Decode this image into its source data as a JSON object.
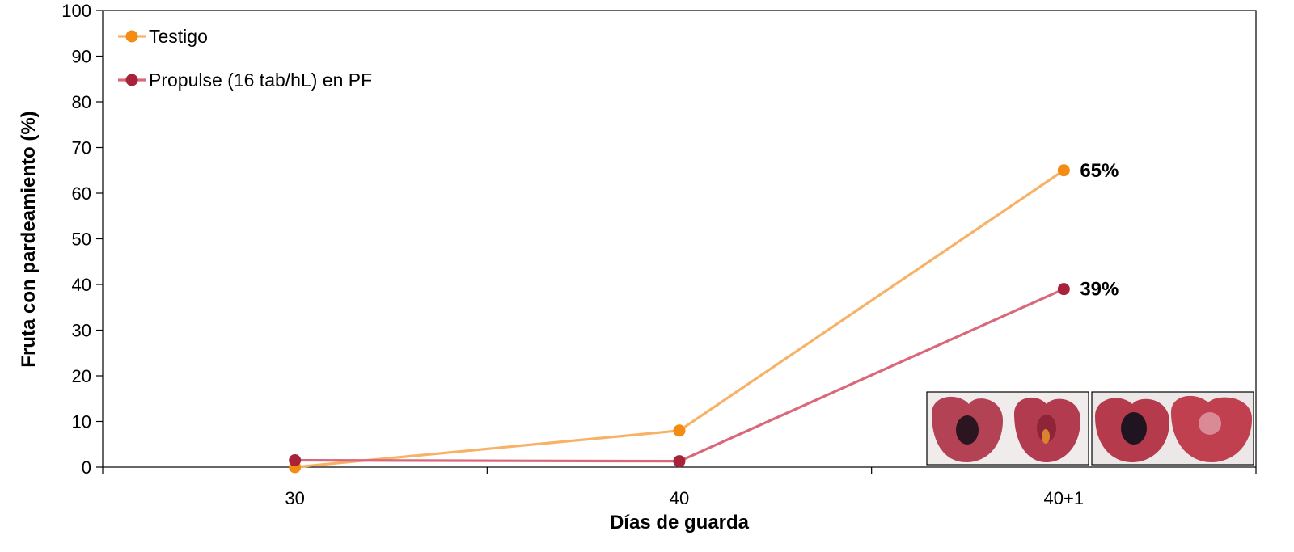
{
  "chart_data": {
    "type": "line",
    "categories": [
      "30",
      "40",
      "40+1"
    ],
    "xlabel": "Días de guarda",
    "ylabel": "Fruta con pardeamiento (%)",
    "ylim": [
      0,
      100
    ],
    "yticks": [
      "0",
      "10",
      "20",
      "30",
      "40",
      "50",
      "60",
      "70",
      "80",
      "90",
      "100"
    ],
    "grid": false,
    "legend_position": "top-left",
    "series": [
      {
        "name": "Testigo",
        "values": [
          0,
          8,
          65
        ],
        "line_color": "#F7B267",
        "marker_color": "#F28C12",
        "data_labels": [
          "",
          "",
          "65%"
        ]
      },
      {
        "name": "Propulse (16 tab/hL) en PF",
        "values": [
          1.5,
          1.3,
          39
        ],
        "line_color": "#D9687A",
        "marker_color": "#A8233A",
        "data_labels": [
          "",
          "",
          "39%"
        ]
      }
    ],
    "inset_images": [
      {
        "subject": "cherry-halves-browning-photo"
      },
      {
        "subject": "cherry-halves-browning-photo"
      }
    ]
  }
}
